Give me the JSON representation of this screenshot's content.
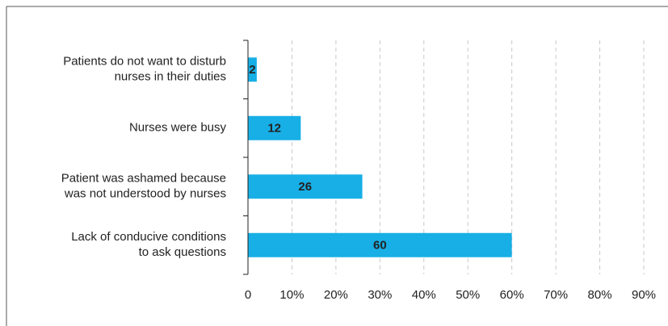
{
  "chart_data": {
    "type": "hbar",
    "categories": [
      [
        "Patients do not want to disturb",
        "nurses in their duties"
      ],
      [
        "Nurses were busy"
      ],
      [
        "Patient was ashamed because",
        "was not understood by nurses"
      ],
      [
        "Lack of conducive conditions",
        "to ask questions"
      ]
    ],
    "values": [
      2,
      12,
      26,
      60
    ],
    "color": "#17afe6",
    "xlim": [
      0,
      90
    ],
    "xticks": [
      0,
      {
        "value": 10,
        "label": "10%"
      },
      {
        "value": 20,
        "label": "20%"
      },
      {
        "value": 30,
        "label": "30%"
      },
      {
        "value": 40,
        "label": "40%"
      },
      {
        "value": 50,
        "label": "50%"
      },
      {
        "value": 60,
        "label": "60%"
      },
      {
        "value": 70,
        "label": "70%"
      },
      {
        "value": 80,
        "label": "80%"
      },
      {
        "value": 90,
        "label": "90%"
      }
    ],
    "grid": true
  }
}
